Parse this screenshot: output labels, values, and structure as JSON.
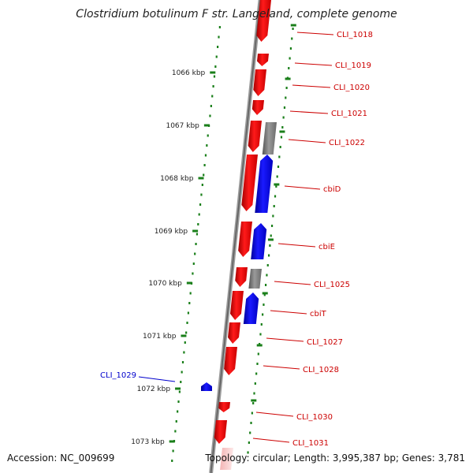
{
  "title": "Clostridium botulinum F str. Langeland, complete genome",
  "footer": {
    "accession": "Accession: NC_009699",
    "summary": "Topology: circular; Length: 3,995,387 bp; Genes: 3,781"
  },
  "colors": {
    "forward_gene": "#ff0000",
    "reverse_gene": "#0000ff",
    "other_feature": "#808080",
    "scale_marks": "#1a7f1a",
    "backbone": "#888888",
    "label_right": "#cc0000",
    "label_left": "#0000cc"
  },
  "scale_labels": [
    "1066 kbp",
    "1067 kbp",
    "1068 kbp",
    "1069 kbp",
    "1070 kbp",
    "1071 kbp",
    "1072 kbp",
    "1073 kbp"
  ],
  "gene_labels": [
    {
      "text": "CLI_1018",
      "side": "right",
      "strand": "forward"
    },
    {
      "text": "CLI_1019",
      "side": "right",
      "strand": "forward"
    },
    {
      "text": "CLI_1020",
      "side": "right",
      "strand": "forward"
    },
    {
      "text": "CLI_1021",
      "side": "right",
      "strand": "forward"
    },
    {
      "text": "CLI_1022",
      "side": "right",
      "strand": "other"
    },
    {
      "text": "cbiD",
      "side": "right",
      "strand": "reverse"
    },
    {
      "text": "cbiE",
      "side": "right",
      "strand": "reverse"
    },
    {
      "text": "CLI_1025",
      "side": "right",
      "strand": "other"
    },
    {
      "text": "cbiT",
      "side": "right",
      "strand": "reverse"
    },
    {
      "text": "CLI_1027",
      "side": "right",
      "strand": "forward"
    },
    {
      "text": "CLI_1028",
      "side": "right",
      "strand": "forward"
    },
    {
      "text": "CLI_1029",
      "side": "left",
      "strand": "reverse"
    },
    {
      "text": "CLI_1030",
      "side": "right",
      "strand": "forward"
    },
    {
      "text": "CLI_1031",
      "side": "right",
      "strand": "forward"
    }
  ]
}
